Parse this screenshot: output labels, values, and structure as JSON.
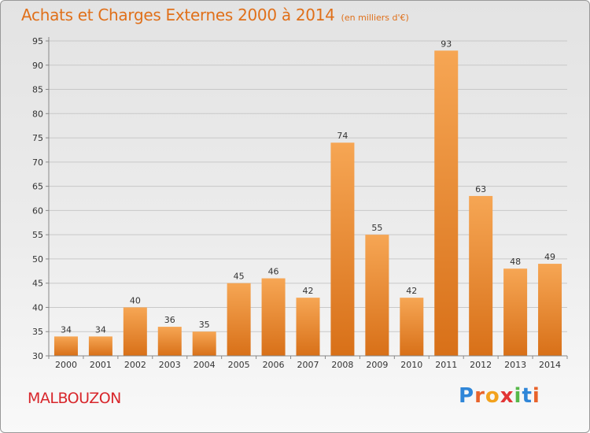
{
  "header": {
    "title": "Achats et Charges Externes 2000 à 2014",
    "subtitle": "(en milliers d'€)"
  },
  "footer": {
    "commune": "MALBOUZON",
    "logo_text": "Proxiti"
  },
  "colors": {
    "title": "#e0701a",
    "commune": "#d8262b",
    "bar_light": "#f6a654",
    "bar_dark": "#d87018",
    "logo_letters": [
      "#2f86d8",
      "#e8632b",
      "#f2a21d",
      "#e23535",
      "#57b849",
      "#2f86d8",
      "#e8632b"
    ]
  },
  "chart_data": {
    "type": "bar",
    "categories": [
      "2000",
      "2001",
      "2002",
      "2003",
      "2004",
      "2005",
      "2006",
      "2007",
      "2008",
      "2009",
      "2010",
      "2011",
      "2012",
      "2013",
      "2014"
    ],
    "values": [
      34,
      34,
      40,
      36,
      35,
      45,
      46,
      42,
      74,
      55,
      42,
      93,
      63,
      48,
      49
    ],
    "title": "Achats et Charges Externes 2000 à 2014",
    "subtitle": "(en milliers d'€)",
    "xlabel": "",
    "ylabel": "",
    "ylim": [
      30,
      95
    ],
    "yticks": [
      30,
      35,
      40,
      45,
      50,
      55,
      60,
      65,
      70,
      75,
      80,
      85,
      90,
      95
    ],
    "grid": true,
    "data_labels": true
  }
}
